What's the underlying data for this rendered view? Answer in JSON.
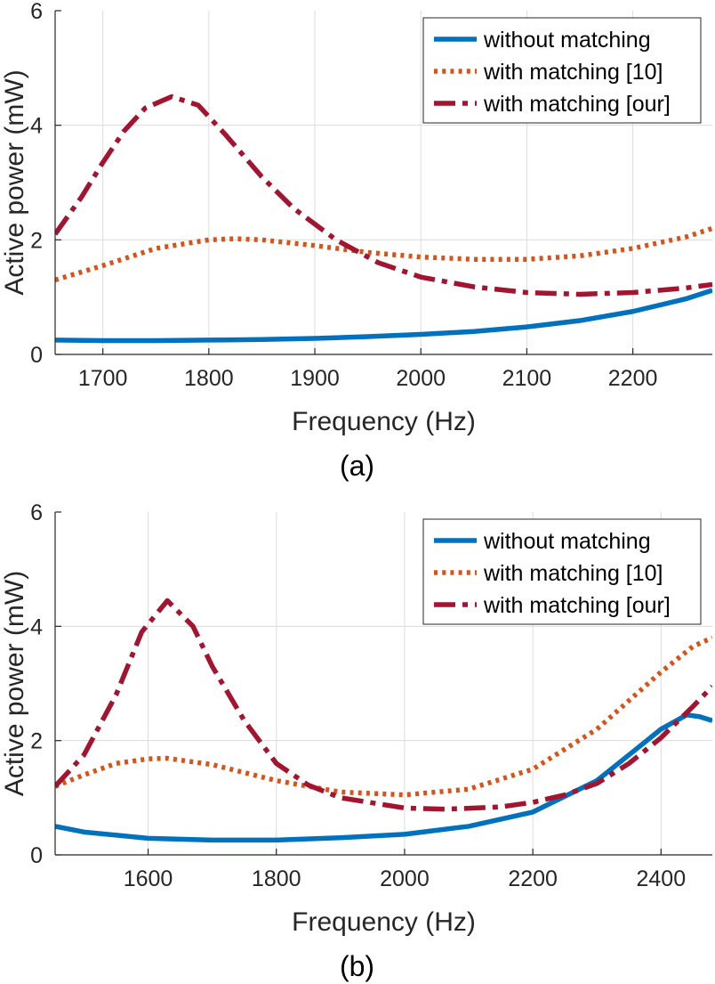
{
  "chart_data": [
    {
      "type": "line",
      "caption": "(a)",
      "xlabel": "Frequency (Hz)",
      "ylabel": "Active power (mW)",
      "xlim": [
        1655,
        2275
      ],
      "ylim": [
        0,
        6
      ],
      "xticks": [
        1700,
        1800,
        1900,
        2000,
        2100,
        2200
      ],
      "yticks": [
        0,
        2,
        4,
        6
      ],
      "grid": true,
      "legend": "top-right",
      "series": [
        {
          "name": "without matching",
          "color": "#0072BD",
          "style": "solid",
          "x": [
            1655,
            1700,
            1750,
            1800,
            1850,
            1900,
            1950,
            2000,
            2050,
            2100,
            2150,
            2200,
            2250,
            2275
          ],
          "y": [
            0.25,
            0.24,
            0.24,
            0.25,
            0.26,
            0.28,
            0.31,
            0.35,
            0.4,
            0.48,
            0.59,
            0.75,
            0.97,
            1.12
          ]
        },
        {
          "name": "with matching [10]",
          "color": "#D95319",
          "style": "dotted",
          "x": [
            1655,
            1700,
            1750,
            1800,
            1825,
            1850,
            1900,
            1950,
            2000,
            2050,
            2100,
            2150,
            2200,
            2250,
            2275
          ],
          "y": [
            1.3,
            1.55,
            1.85,
            2.0,
            2.02,
            2.0,
            1.9,
            1.78,
            1.7,
            1.66,
            1.66,
            1.72,
            1.85,
            2.05,
            2.2
          ]
        },
        {
          "name": "with matching [our]",
          "color": "#A2142F",
          "style": "dashdot",
          "x": [
            1655,
            1680,
            1700,
            1720,
            1740,
            1765,
            1790,
            1815,
            1850,
            1880,
            1920,
            1960,
            2000,
            2050,
            2100,
            2150,
            2200,
            2250,
            2275
          ],
          "y": [
            2.1,
            2.75,
            3.35,
            3.9,
            4.3,
            4.5,
            4.35,
            3.85,
            3.1,
            2.55,
            2.0,
            1.6,
            1.35,
            1.18,
            1.08,
            1.05,
            1.08,
            1.16,
            1.22
          ]
        }
      ]
    },
    {
      "type": "line",
      "caption": "(b)",
      "xlabel": "Frequency (Hz)",
      "ylabel": "Active power (mW)",
      "xlim": [
        1455,
        2480
      ],
      "ylim": [
        0,
        6
      ],
      "xticks": [
        1600,
        1800,
        2000,
        2200,
        2400
      ],
      "yticks": [
        0,
        2,
        4,
        6
      ],
      "grid": true,
      "legend": "top-right",
      "series": [
        {
          "name": "without matching",
          "color": "#0072BD",
          "style": "solid",
          "x": [
            1455,
            1500,
            1600,
            1700,
            1800,
            1900,
            2000,
            2100,
            2200,
            2300,
            2350,
            2400,
            2440,
            2460,
            2480
          ],
          "y": [
            0.5,
            0.4,
            0.29,
            0.26,
            0.26,
            0.3,
            0.36,
            0.5,
            0.75,
            1.3,
            1.75,
            2.2,
            2.45,
            2.42,
            2.35
          ]
        },
        {
          "name": "with matching [10]",
          "color": "#D95319",
          "style": "dotted",
          "x": [
            1455,
            1500,
            1550,
            1600,
            1630,
            1700,
            1800,
            1900,
            2000,
            2100,
            2200,
            2300,
            2350,
            2400,
            2450,
            2480
          ],
          "y": [
            1.2,
            1.4,
            1.6,
            1.68,
            1.69,
            1.58,
            1.3,
            1.1,
            1.05,
            1.15,
            1.5,
            2.2,
            2.7,
            3.2,
            3.65,
            3.8
          ]
        },
        {
          "name": "with matching [our]",
          "color": "#A2142F",
          "style": "dashdot",
          "x": [
            1455,
            1500,
            1550,
            1590,
            1630,
            1670,
            1700,
            1750,
            1800,
            1850,
            1900,
            2000,
            2065,
            2150,
            2200,
            2250,
            2300,
            2350,
            2400,
            2450,
            2480
          ],
          "y": [
            1.2,
            1.75,
            2.8,
            3.9,
            4.45,
            4.0,
            3.3,
            2.35,
            1.6,
            1.22,
            1.0,
            0.82,
            0.8,
            0.84,
            0.92,
            1.05,
            1.25,
            1.6,
            2.05,
            2.6,
            2.95
          ]
        }
      ]
    }
  ]
}
